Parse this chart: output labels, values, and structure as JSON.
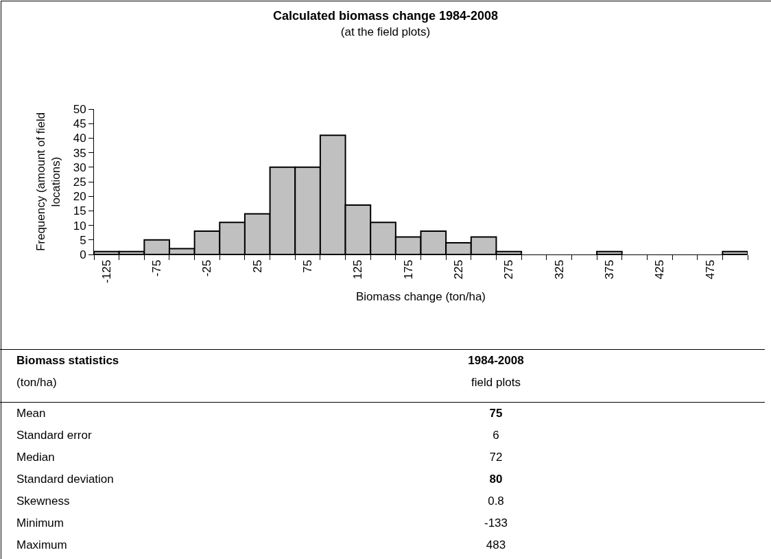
{
  "chart_data": [
    {
      "type": "histogram",
      "title": "Calculated biomass change 1984-2008",
      "subtitle": "(at the field plots)",
      "xlabel": "Biomass change (ton/ha)",
      "ylabel": "Frequency (amount of field locations)",
      "bins": [
        -137.5,
        -112.5,
        -87.5,
        -62.5,
        -37.5,
        -12.5,
        12.5,
        37.5,
        62.5,
        87.5,
        112.5,
        137.5,
        162.5,
        187.5,
        212.5,
        237.5,
        262.5,
        287.5,
        312.5,
        337.5,
        362.5,
        387.5,
        412.5,
        437.5,
        462.5,
        487.5,
        512.5
      ],
      "values": [
        1,
        1,
        5,
        2,
        8,
        11,
        14,
        30,
        30,
        41,
        17,
        11,
        6,
        8,
        4,
        6,
        1,
        0,
        0,
        0,
        1,
        0,
        0,
        0,
        0,
        1
      ],
      "color": "#c0c0c0",
      "xlim": [
        -137.5,
        512.5
      ],
      "ylim": [
        0,
        50
      ],
      "xticks": [
        {
          "value": -137.5,
          "label": null
        },
        -125,
        {
          "value": -112.5,
          "label": null
        },
        {
          "value": -87.5,
          "label": null
        },
        -75,
        {
          "value": -62.5,
          "label": null
        },
        {
          "value": -37.5,
          "label": null
        },
        -25,
        {
          "value": -12.5,
          "label": null
        },
        {
          "value": 12.5,
          "label": null
        },
        25,
        {
          "value": 37.5,
          "label": null
        },
        {
          "value": 62.5,
          "label": null
        },
        75,
        {
          "value": 87.5,
          "label": null
        },
        {
          "value": 112.5,
          "label": null
        },
        125,
        {
          "value": 137.5,
          "label": null
        },
        {
          "value": 162.5,
          "label": null
        },
        175,
        {
          "value": 187.5,
          "label": null
        },
        {
          "value": 212.5,
          "label": null
        },
        225,
        {
          "value": 237.5,
          "label": null
        },
        {
          "value": 262.5,
          "label": null
        },
        275,
        {
          "value": 287.5,
          "label": null
        },
        {
          "value": 312.5,
          "label": null
        },
        325,
        {
          "value": 337.5,
          "label": null
        },
        {
          "value": 362.5,
          "label": null
        },
        375,
        {
          "value": 387.5,
          "label": null
        },
        {
          "value": 412.5,
          "label": null
        },
        425,
        {
          "value": 437.5,
          "label": null
        },
        {
          "value": 462.5,
          "label": null
        },
        475,
        {
          "value": 487.5,
          "label": null
        },
        {
          "value": 512.5,
          "label": null
        }
      ],
      "yticks": [
        0,
        5,
        10,
        15,
        20,
        25,
        30,
        35,
        40,
        45,
        50
      ],
      "grid": false
    },
    {
      "type": "other",
      "annotations": [
        "Biomass statistics",
        "1984-2008",
        "(ton/ha)",
        "field plots",
        "Mean",
        "75",
        "Standard error",
        "6",
        "Median",
        "72",
        "Standard deviation",
        "80",
        "Skewness",
        "0.8",
        "Minimum",
        "-133",
        "Maximum",
        "483"
      ]
    }
  ]
}
